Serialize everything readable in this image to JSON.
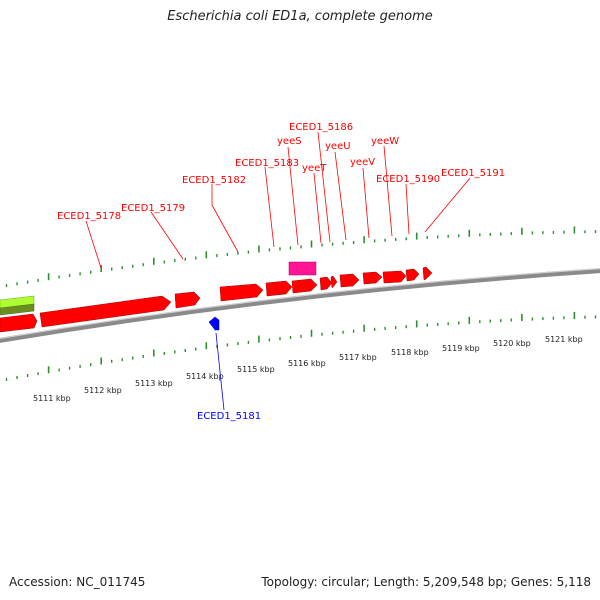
{
  "title": "Escherichia coli ED1a, complete genome",
  "footer": {
    "accession": "Accession: NC_011745",
    "info": "Topology: circular; Length: 5,209,548 bp; Genes: 5,118"
  },
  "colors": {
    "forward_gene": "#ff0000",
    "reverse_gene": "#0000ff",
    "pink_feature": "#ff1493",
    "green_feature": "#6b8e23",
    "lime_feature": "#adff2f",
    "tick": "#2f8f2f",
    "backbone": "#8a8a8a"
  },
  "kbp_labels": [
    "5111 kbp",
    "5112 kbp",
    "5113 kbp",
    "5114 kbp",
    "5115 kbp",
    "5116 kbp",
    "5117 kbp",
    "5118 kbp",
    "5119 kbp",
    "5120 kbp",
    "5121 kbp"
  ],
  "gene_labels": [
    {
      "text": "ECED1_5178",
      "color": "#ff0000"
    },
    {
      "text": "ECED1_5179",
      "color": "#ff0000"
    },
    {
      "text": "ECED1_5182",
      "color": "#ff0000"
    },
    {
      "text": "ECED1_5183",
      "color": "#ff0000"
    },
    {
      "text": "yeeS",
      "color": "#ff0000"
    },
    {
      "text": "ECED1_5186",
      "color": "#ff0000"
    },
    {
      "text": "yeeT",
      "color": "#ff0000"
    },
    {
      "text": "yeeU",
      "color": "#ff0000"
    },
    {
      "text": "yeeV",
      "color": "#ff0000"
    },
    {
      "text": "yeeW",
      "color": "#ff0000"
    },
    {
      "text": "ECED1_5190",
      "color": "#ff0000"
    },
    {
      "text": "ECED1_5191",
      "color": "#ff0000"
    },
    {
      "text": "ECED1_5181",
      "color": "#0000ff"
    }
  ]
}
